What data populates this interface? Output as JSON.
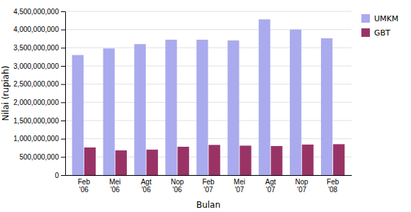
{
  "chart_data": {
    "type": "bar",
    "categories": [
      "Feb\n'06",
      "Mei\n'06",
      "Agt\n'06",
      "Nop\n'06",
      "Feb\n'07",
      "Mei\n'07",
      "Agt\n'07",
      "Nop\n'07",
      "Feb\n'08"
    ],
    "series": [
      {
        "name": "UMKM",
        "color": "#aaaaee",
        "values": [
          3300000000,
          3480000000,
          3600000000,
          3720000000,
          3720000000,
          3700000000,
          4280000000,
          4000000000,
          3760000000
        ]
      },
      {
        "name": "GBT",
        "color": "#993366",
        "values": [
          760000000,
          680000000,
          700000000,
          780000000,
          830000000,
          810000000,
          800000000,
          840000000,
          850000000
        ]
      }
    ],
    "xlabel": "Bulan",
    "ylabel": "Nilai (rupiah)",
    "ylim": [
      0,
      4500000000
    ],
    "yticks": [
      0,
      {
        "value": 500000000,
        "label": "500,000,000"
      },
      {
        "value": 1000000000,
        "label": "1,000,000,000"
      },
      {
        "value": 1500000000,
        "label": "1,500,000,000"
      },
      {
        "value": 2000000000,
        "label": "2,000,000,000"
      },
      {
        "value": 2500000000,
        "label": "2,500,000,000"
      },
      {
        "value": 3000000000,
        "label": "3,000,000,000"
      },
      {
        "value": 3500000000,
        "label": "3,500,000,000"
      },
      {
        "value": 4000000000,
        "label": "4,000,000,000"
      },
      {
        "value": 4500000000,
        "label": "4,500,000,000"
      }
    ],
    "grid": true,
    "legend": "right"
  }
}
